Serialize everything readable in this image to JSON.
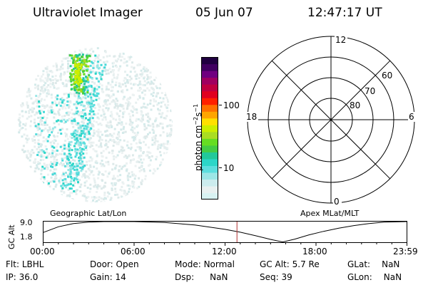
{
  "header": {
    "title": "Ultraviolet Imager",
    "date": "05 Jun 07",
    "time": "12:47:17 UT"
  },
  "colorbar": {
    "label_main": "photon cm",
    "sup1": "−2",
    "mid": "s",
    "sup2": "−1",
    "ticks": [
      {
        "label": "100",
        "value": 100
      },
      {
        "label": "10",
        "value": 10
      }
    ],
    "colors": [
      "#d8f2f2",
      "#e8f0f0",
      "#ccecee",
      "#9ce6e6",
      "#5cdede",
      "#2cd6c8",
      "#22c89a",
      "#44cc44",
      "#66dd22",
      "#aadd22",
      "#ccee00",
      "#ffe000",
      "#ffa500",
      "#ff7000",
      "#ff2000",
      "#e00020",
      "#c00040",
      "#a00060",
      "#700080",
      "#400060",
      "#200040"
    ]
  },
  "polar": {
    "labels": {
      "top": "12",
      "bottom": "0",
      "left": "18",
      "right": "6"
    },
    "lat_labels": [
      "60",
      "70",
      "80"
    ]
  },
  "timeline": {
    "left_title": "Geographic Lat/Lon",
    "right_title": "Apex MLat/MLT",
    "axis_label": "GC Alt",
    "y_max_label": "9.0",
    "y_min_label": "1.8",
    "ticks": [
      "00:00",
      "06:00",
      "12:00",
      "18:00",
      "23:59"
    ],
    "current_time_hours": 12.788,
    "y_range": [
      1.8,
      9.0
    ],
    "curve": [
      {
        "t": 0,
        "v": 5.2
      },
      {
        "t": 1,
        "v": 7.2
      },
      {
        "t": 2,
        "v": 8.3
      },
      {
        "t": 3,
        "v": 8.8
      },
      {
        "t": 4,
        "v": 9.0
      },
      {
        "t": 6,
        "v": 9.0
      },
      {
        "t": 8,
        "v": 8.7
      },
      {
        "t": 10,
        "v": 7.8
      },
      {
        "t": 12,
        "v": 6.3
      },
      {
        "t": 13,
        "v": 5.3
      },
      {
        "t": 14,
        "v": 4.1
      },
      {
        "t": 15,
        "v": 2.8
      },
      {
        "t": 15.8,
        "v": 1.9
      },
      {
        "t": 16.6,
        "v": 2.9
      },
      {
        "t": 17.5,
        "v": 4.3
      },
      {
        "t": 18.5,
        "v": 5.6
      },
      {
        "t": 19.5,
        "v": 6.7
      },
      {
        "t": 20.5,
        "v": 7.6
      },
      {
        "t": 21.5,
        "v": 8.3
      },
      {
        "t": 22.5,
        "v": 8.8
      },
      {
        "t": 23.98,
        "v": 9.0
      }
    ]
  },
  "footer": {
    "flt_label": "Flt:",
    "flt_value": "LBHL",
    "ip_label": "IP:",
    "ip_value": "36.0",
    "door_label": "Door:",
    "door_value": "Open",
    "gain_label": "Gain:",
    "gain_value": "14",
    "mode_label": "Mode:",
    "mode_value": "Normal",
    "dsp_label": "Dsp:",
    "dsp_value": "NaN",
    "gcalt_label": "GC Alt:",
    "gcalt_value": "5.7 Re",
    "seq_label": "Seq:",
    "seq_value": "39",
    "glat_label": "GLat:",
    "glat_value": "NaN",
    "glon_label": "GLon:",
    "glon_value": "NaN"
  }
}
